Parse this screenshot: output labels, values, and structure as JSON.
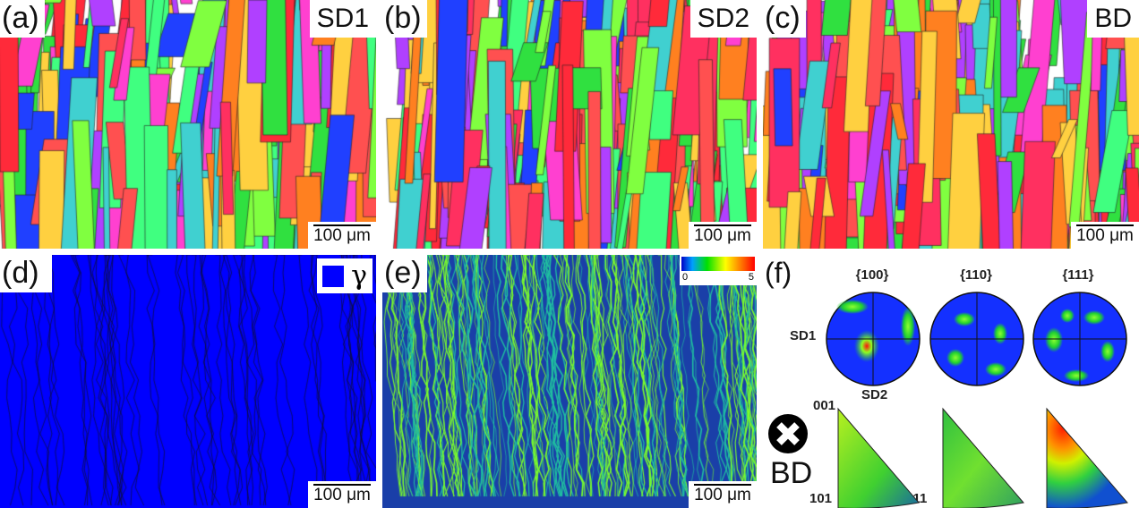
{
  "panels": {
    "a": {
      "label": "(a)",
      "direction": "SD1",
      "scale": "100 μm"
    },
    "b": {
      "label": "(b)",
      "direction": "SD2",
      "scale": "100 μm"
    },
    "c": {
      "label": "(c)",
      "direction": "BD",
      "scale": "100 μm"
    },
    "d": {
      "label": "(d)",
      "phase_legend": "γ",
      "phase_color": "#0000ff",
      "scale": "100 μm"
    },
    "e": {
      "label": "(e)",
      "colorbar_min": "0",
      "colorbar_max": "5",
      "scale": "100 μm"
    },
    "f": {
      "label": "(f)",
      "pole_figures": [
        "{100}",
        "{110}",
        "{111}"
      ],
      "axis_sd1": "SD1",
      "axis_sd2": "SD2",
      "ipf_corners": [
        "001",
        "101",
        "111"
      ],
      "ipf_direction": "BD"
    }
  },
  "colors": {
    "matrix": "#0000ff",
    "kam_low": "#1a3fa8",
    "kam_high": "#7cff2a"
  }
}
